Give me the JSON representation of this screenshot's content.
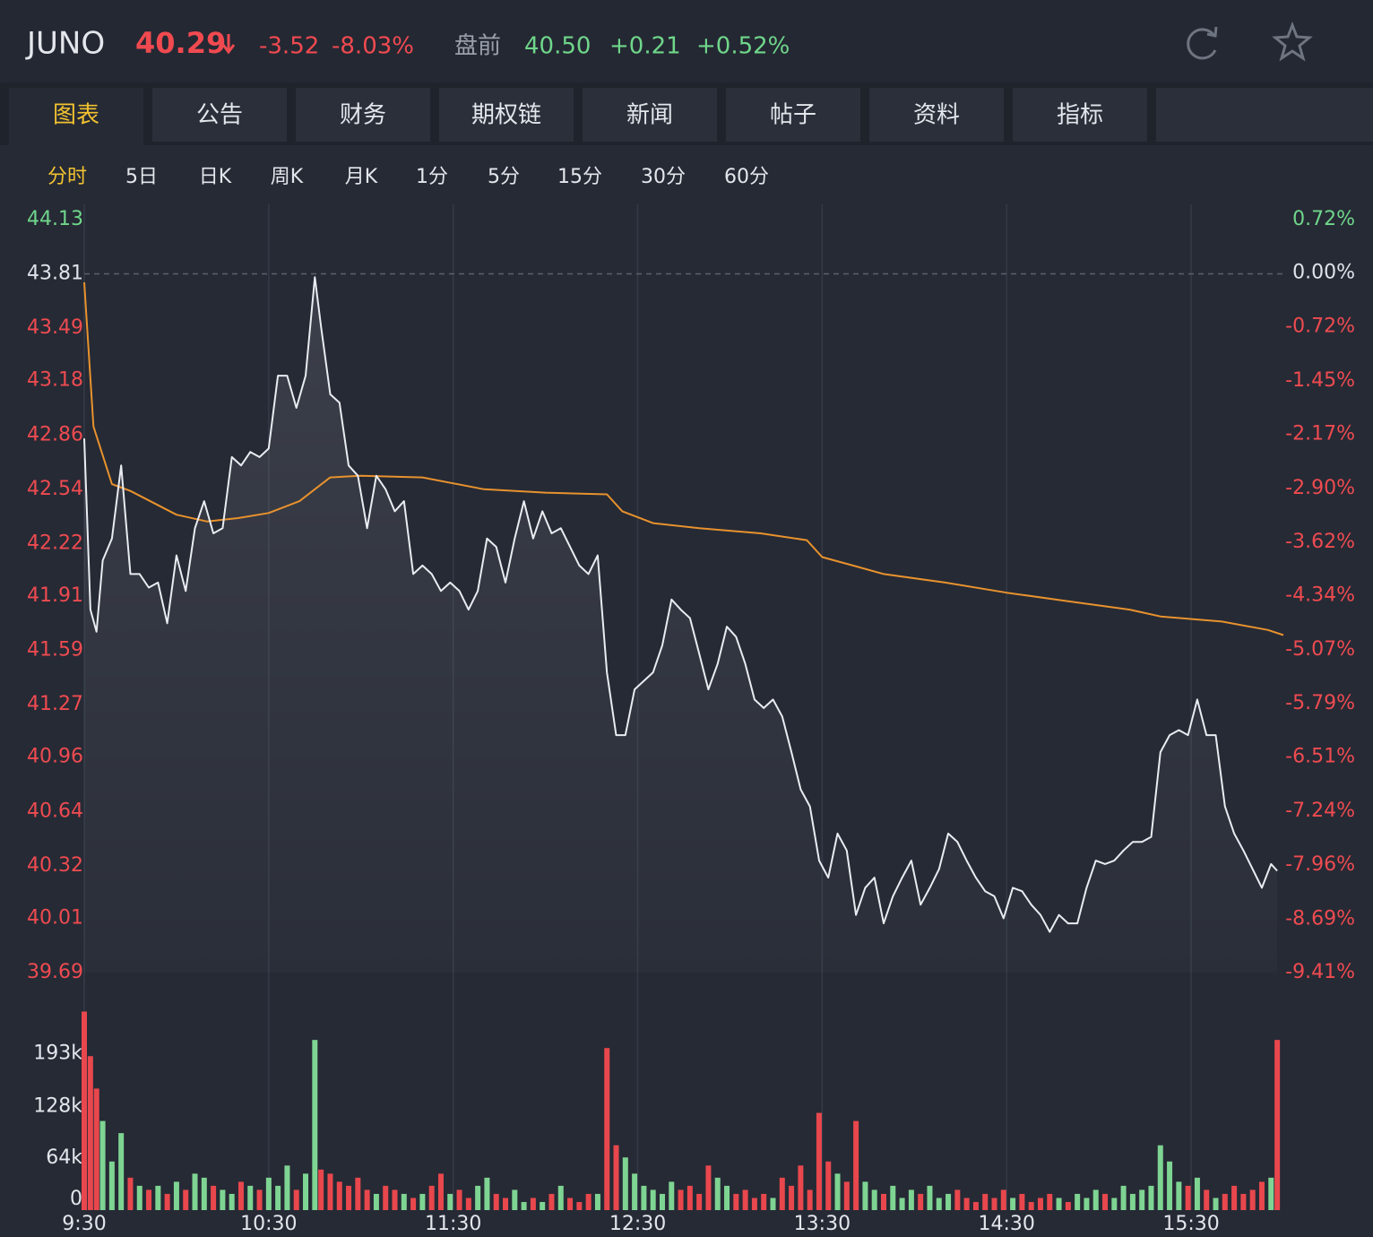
{
  "header": {
    "symbol": "JUNO",
    "price": "40.29",
    "change": "-3.52",
    "change_pct": "-8.03%",
    "premarket_label": "盘前",
    "premarket_price": "40.50",
    "premarket_change": "+0.21",
    "premarket_change_pct": "+0.52%"
  },
  "tabs": [
    "图表",
    "公告",
    "财务",
    "期权链",
    "新闻",
    "帖子",
    "资料",
    "指标"
  ],
  "active_tab": 0,
  "subtabs": [
    "分时",
    "5日",
    "日K",
    "周K",
    "月K",
    "1分",
    "5分",
    "15分",
    "30分",
    "60分"
  ],
  "active_subtab": 0,
  "chart_data": [
    {
      "type": "line",
      "xlim": [
        0,
        390
      ],
      "ylim": [
        39.69,
        44.13
      ],
      "yticks": [
        44.13,
        43.81,
        43.49,
        43.18,
        42.86,
        42.54,
        42.22,
        41.91,
        41.59,
        41.27,
        40.96,
        40.64,
        40.32,
        40.01,
        39.69
      ],
      "y2lim": [
        -9.41,
        0.72
      ],
      "y2ticks": [
        {
          "value": 0.72,
          "label": "0.72%"
        },
        {
          "value": 0,
          "label": "0.00%"
        },
        {
          "value": -0.72,
          "label": "-0.72%"
        },
        {
          "value": -1.45,
          "label": "-1.45%"
        },
        {
          "value": -2.17,
          "label": "-2.17%"
        },
        {
          "value": -2.9,
          "label": "-2.90%"
        },
        {
          "value": -3.62,
          "label": "-3.62%"
        },
        {
          "value": -4.34,
          "label": "-4.34%"
        },
        {
          "value": -5.07,
          "label": "-5.07%"
        },
        {
          "value": -5.79,
          "label": "-5.79%"
        },
        {
          "value": -6.51,
          "label": "-6.51%"
        },
        {
          "value": -7.24,
          "label": "-7.24%"
        },
        {
          "value": -7.96,
          "label": "-7.96%"
        },
        {
          "value": -8.69,
          "label": "-8.69%"
        },
        {
          "value": -9.41,
          "label": "-9.41%"
        }
      ],
      "reference_line": 43.81,
      "grid": "vertical",
      "up_color": "#6fd68a",
      "down_color": "#ee4b50",
      "flat_color": "#dfe3ea",
      "series": [
        {
          "color": "#e9ecf1",
          "x": [
            0,
            2,
            4,
            6,
            9,
            12,
            15,
            18,
            21,
            24,
            27,
            30,
            33,
            36,
            39,
            42,
            45,
            48,
            51,
            54,
            57,
            60,
            63,
            66,
            69,
            72,
            75,
            77,
            80,
            83,
            86,
            89,
            92,
            95,
            98,
            101,
            104,
            107,
            110,
            113,
            116,
            119,
            122,
            125,
            128,
            131,
            134,
            137,
            140,
            143,
            146,
            149,
            152,
            155,
            158,
            161,
            164,
            167,
            170,
            173,
            176,
            179,
            182,
            185,
            188,
            191,
            194,
            197,
            200,
            203,
            206,
            209,
            212,
            215,
            218,
            221,
            224,
            227,
            230,
            233,
            236,
            239,
            242,
            245,
            248,
            251,
            254,
            257,
            260,
            263,
            266,
            269,
            272,
            275,
            278,
            281,
            284,
            287,
            290,
            293,
            296,
            299,
            302,
            305,
            308,
            311,
            314,
            317,
            320,
            323,
            326,
            329,
            332,
            335,
            338,
            341,
            344,
            347,
            350,
            353,
            356,
            359,
            362,
            365,
            368,
            371,
            374,
            377,
            380,
            383,
            386,
            388
          ],
          "values": [
            42.84,
            41.83,
            41.7,
            42.12,
            42.25,
            42.68,
            42.04,
            42.04,
            41.96,
            41.99,
            41.75,
            42.15,
            41.94,
            42.31,
            42.47,
            42.28,
            42.31,
            42.73,
            42.68,
            42.76,
            42.73,
            42.78,
            43.21,
            43.21,
            43.02,
            43.21,
            43.79,
            43.5,
            43.1,
            43.05,
            42.68,
            42.62,
            42.31,
            42.62,
            42.54,
            42.41,
            42.47,
            42.04,
            42.09,
            42.04,
            41.94,
            41.99,
            41.94,
            41.83,
            41.94,
            42.25,
            42.2,
            41.99,
            42.25,
            42.47,
            42.25,
            42.41,
            42.28,
            42.31,
            42.2,
            42.09,
            42.04,
            42.15,
            41.46,
            41.09,
            41.09,
            41.36,
            41.41,
            41.46,
            41.62,
            41.89,
            41.83,
            41.78,
            41.57,
            41.36,
            41.51,
            41.73,
            41.67,
            41.51,
            41.3,
            41.25,
            41.3,
            41.2,
            40.99,
            40.77,
            40.67,
            40.35,
            40.25,
            40.51,
            40.41,
            40.03,
            40.19,
            40.25,
            39.98,
            40.14,
            40.25,
            40.35,
            40.09,
            40.19,
            40.3,
            40.51,
            40.46,
            40.35,
            40.25,
            40.17,
            40.14,
            40.01,
            40.19,
            40.17,
            40.09,
            40.03,
            39.93,
            40.03,
            39.98,
            39.98,
            40.19,
            40.35,
            40.33,
            40.35,
            40.41,
            40.46,
            40.46,
            40.49,
            40.99,
            41.09,
            41.12,
            41.09,
            41.3,
            41.09,
            41.09,
            40.67,
            40.51,
            40.41,
            40.3,
            40.19,
            40.33,
            40.29
          ]
        },
        {
          "color": "#e8922d",
          "x": [
            0,
            3,
            9,
            15,
            30,
            40,
            50,
            60,
            70,
            75,
            80,
            90,
            110,
            130,
            150,
            170,
            175,
            185,
            200,
            220,
            235,
            240,
            250,
            260,
            280,
            300,
            320,
            340,
            350,
            370,
            385,
            390
          ],
          "values": [
            43.76,
            42.91,
            42.57,
            42.53,
            42.39,
            42.35,
            42.37,
            42.4,
            42.47,
            42.54,
            42.61,
            42.62,
            42.61,
            42.54,
            42.52,
            42.51,
            42.41,
            42.34,
            42.31,
            42.28,
            42.24,
            42.14,
            42.09,
            42.04,
            41.99,
            41.93,
            41.88,
            41.83,
            41.79,
            41.76,
            41.71,
            41.68
          ]
        }
      ]
    },
    {
      "type": "bar",
      "xlim": [
        0,
        390
      ],
      "xticks": [
        {
          "value": 0,
          "label": "9:30"
        },
        {
          "value": 60,
          "label": "10:30"
        },
        {
          "value": 120,
          "label": "11:30"
        },
        {
          "value": 180,
          "label": "12:30"
        },
        {
          "value": 240,
          "label": "13:30"
        },
        {
          "value": 300,
          "label": "14:30"
        },
        {
          "value": 360,
          "label": "15:30"
        }
      ],
      "ylim": [
        0,
        250000
      ],
      "yticks": [
        0,
        {
          "value": 64000,
          "label": "64k"
        },
        {
          "value": 128000,
          "label": "128k"
        },
        {
          "value": 193000,
          "label": "193k"
        }
      ],
      "up_color": "#7ed492",
      "down_color": "#e8474d",
      "values": [
        245000,
        190000,
        150000,
        110000,
        60000,
        95000,
        40000,
        30000,
        25000,
        30000,
        20000,
        35000,
        25000,
        45000,
        40000,
        30000,
        25000,
        20000,
        35000,
        30000,
        25000,
        40000,
        30000,
        55000,
        25000,
        45000,
        210000,
        50000,
        45000,
        35000,
        30000,
        40000,
        25000,
        20000,
        30000,
        25000,
        20000,
        15000,
        20000,
        30000,
        45000,
        20000,
        25000,
        15000,
        30000,
        40000,
        20000,
        15000,
        25000,
        10000,
        15000,
        10000,
        20000,
        30000,
        15000,
        10000,
        20000,
        20000,
        200000,
        80000,
        65000,
        45000,
        30000,
        25000,
        20000,
        35000,
        25000,
        30000,
        20000,
        55000,
        40000,
        30000,
        20000,
        25000,
        15000,
        20000,
        15000,
        40000,
        30000,
        55000,
        25000,
        120000,
        60000,
        45000,
        35000,
        110000,
        35000,
        25000,
        20000,
        30000,
        15000,
        25000,
        20000,
        30000,
        15000,
        20000,
        25000,
        15000,
        10000,
        20000,
        15000,
        25000,
        15000,
        20000,
        10000,
        15000,
        20000,
        15000,
        10000,
        20000,
        15000,
        25000,
        20000,
        15000,
        30000,
        20000,
        25000,
        30000,
        80000,
        60000,
        35000,
        30000,
        40000,
        25000,
        15000,
        20000,
        30000,
        20000,
        25000,
        35000,
        40000,
        210000
      ]
    }
  ]
}
